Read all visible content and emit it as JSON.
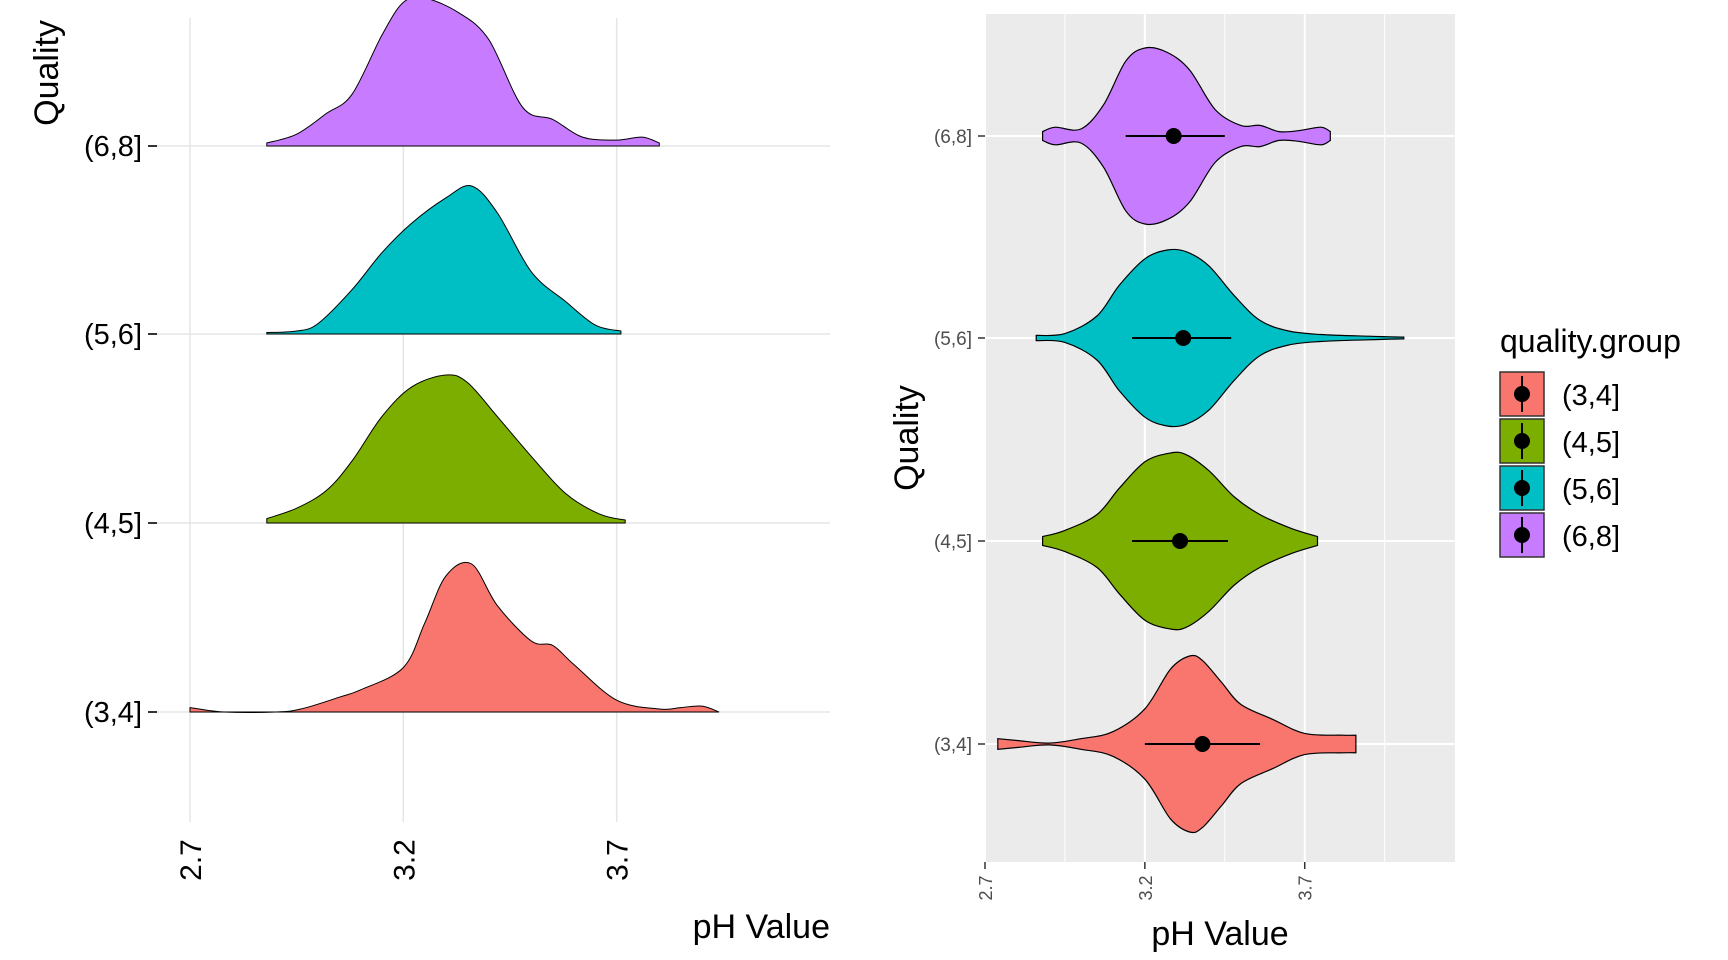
{
  "chart_data": [
    {
      "type": "ridgeline",
      "xlabel": "pH Value",
      "ylabel": "Quality",
      "xlim": [
        2.7,
        4.2
      ],
      "x_ticks": [
        "2.7",
        "3.2",
        "3.7"
      ],
      "grid": true,
      "categories": [
        "(3,4]",
        "(4,5]",
        "(5,6]",
        "(6,8]"
      ],
      "series": [
        {
          "name": "(3,4]",
          "color": "#F8766D",
          "x": [
            2.7,
            2.78,
            2.9,
            2.96,
            3.05,
            3.1,
            3.2,
            3.25,
            3.3,
            3.36,
            3.42,
            3.5,
            3.55,
            3.6,
            3.7,
            3.8,
            3.85,
            3.9,
            3.94
          ],
          "density": [
            0.03,
            0.0,
            0.0,
            0.02,
            0.1,
            0.15,
            0.3,
            0.6,
            0.92,
            1.0,
            0.72,
            0.48,
            0.45,
            0.32,
            0.08,
            0.02,
            0.03,
            0.04,
            0.0
          ]
        },
        {
          "name": "(4,5]",
          "color": "#7CAE00",
          "x": [
            2.88,
            2.95,
            3.02,
            3.08,
            3.15,
            3.22,
            3.3,
            3.35,
            3.42,
            3.5,
            3.58,
            3.66,
            3.72
          ],
          "density": [
            0.03,
            0.1,
            0.22,
            0.42,
            0.72,
            0.92,
            1.0,
            0.95,
            0.72,
            0.45,
            0.2,
            0.06,
            0.02
          ]
        },
        {
          "name": "(5,6]",
          "color": "#00BFC4",
          "x": [
            2.88,
            2.95,
            3.0,
            3.08,
            3.15,
            3.22,
            3.3,
            3.36,
            3.42,
            3.5,
            3.58,
            3.65,
            3.71
          ],
          "density": [
            0.01,
            0.02,
            0.07,
            0.3,
            0.55,
            0.75,
            0.92,
            1.0,
            0.82,
            0.42,
            0.22,
            0.06,
            0.02
          ]
        },
        {
          "name": "(6,8]",
          "color": "#C77CFF",
          "x": [
            2.88,
            2.95,
            3.02,
            3.08,
            3.15,
            3.2,
            3.25,
            3.33,
            3.4,
            3.48,
            3.55,
            3.62,
            3.7,
            3.76,
            3.8
          ],
          "density": [
            0.02,
            0.08,
            0.22,
            0.35,
            0.75,
            0.97,
            1.0,
            0.9,
            0.72,
            0.26,
            0.18,
            0.06,
            0.04,
            0.06,
            0.02
          ]
        }
      ]
    },
    {
      "type": "violin",
      "xlabel": "pH Value",
      "ylabel": "Quality",
      "xlim": [
        2.7,
        4.17
      ],
      "x_ticks": [
        "2.7",
        "3.2",
        "3.7"
      ],
      "grid": true,
      "legend": {
        "title": "quality.group",
        "position": "right"
      },
      "categories": [
        "(3,4]",
        "(4,5]",
        "(5,6]",
        "(6,8]"
      ],
      "series": [
        {
          "name": "(3,4]",
          "color": "#F8766D",
          "mean": 3.38,
          "interval": [
            3.2,
            3.56
          ],
          "x": [
            2.74,
            2.8,
            2.9,
            3.0,
            3.1,
            3.2,
            3.28,
            3.34,
            3.38,
            3.44,
            3.5,
            3.6,
            3.7,
            3.82,
            3.86
          ],
          "width": [
            0.06,
            0.04,
            0.01,
            0.06,
            0.14,
            0.4,
            0.85,
            1.0,
            0.95,
            0.7,
            0.45,
            0.28,
            0.12,
            0.1,
            0.1
          ]
        },
        {
          "name": "(4,5]",
          "color": "#7CAE00",
          "mean": 3.31,
          "interval": [
            3.16,
            3.46
          ],
          "x": [
            2.88,
            2.95,
            3.05,
            3.12,
            3.2,
            3.28,
            3.33,
            3.4,
            3.48,
            3.56,
            3.66,
            3.74
          ],
          "width": [
            0.05,
            0.12,
            0.3,
            0.6,
            0.9,
            1.0,
            0.98,
            0.8,
            0.5,
            0.3,
            0.14,
            0.05
          ]
        },
        {
          "name": "(5,6]",
          "color": "#00BFC4",
          "mean": 3.32,
          "interval": [
            3.16,
            3.47
          ],
          "x": [
            2.86,
            2.95,
            3.05,
            3.12,
            3.2,
            3.27,
            3.33,
            3.4,
            3.48,
            3.56,
            3.65,
            3.75,
            3.9,
            4.01
          ],
          "width": [
            0.03,
            0.05,
            0.25,
            0.6,
            0.9,
            1.0,
            0.98,
            0.82,
            0.48,
            0.2,
            0.08,
            0.04,
            0.02,
            0.01
          ]
        },
        {
          "name": "(6,8]",
          "color": "#C77CFF",
          "mean": 3.29,
          "interval": [
            3.14,
            3.45
          ],
          "x": [
            2.88,
            2.92,
            3.0,
            3.07,
            3.14,
            3.2,
            3.27,
            3.34,
            3.42,
            3.5,
            3.56,
            3.62,
            3.68,
            3.75,
            3.78
          ],
          "width": [
            0.05,
            0.1,
            0.08,
            0.35,
            0.85,
            1.0,
            0.95,
            0.75,
            0.3,
            0.12,
            0.12,
            0.05,
            0.06,
            0.1,
            0.05
          ]
        }
      ]
    }
  ]
}
